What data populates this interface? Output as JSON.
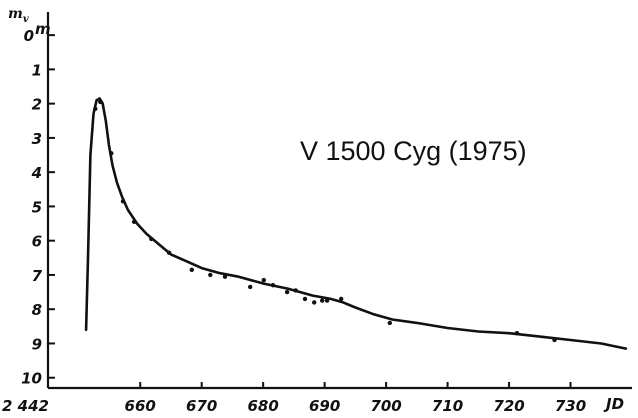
{
  "chart_data": {
    "type": "line",
    "title": "V 1500 Cyg (1975)",
    "ylabel_main": "m",
    "ylabel_sub": "v",
    "xlabel": "JD",
    "x_prefix": "2 442",
    "xlim": [
      645,
      740
    ],
    "ylim": [
      -0.5,
      10.3
    ],
    "y_inverted": true,
    "y_ticks": [
      {
        "value": 0,
        "label": "0"
      },
      {
        "value": 1,
        "label": "1"
      },
      {
        "value": 2,
        "label": "2"
      },
      {
        "value": 3,
        "label": "3"
      },
      {
        "value": 4,
        "label": "4"
      },
      {
        "value": 5,
        "label": "5"
      },
      {
        "value": 6,
        "label": "6"
      },
      {
        "value": 7,
        "label": "7"
      },
      {
        "value": 8,
        "label": "8"
      },
      {
        "value": 9,
        "label": "9"
      },
      {
        "value": 10,
        "label": "10"
      }
    ],
    "y_zero_superscript": "m",
    "x_ticks": [
      {
        "value": 660,
        "label": "660"
      },
      {
        "value": 670,
        "label": "670"
      },
      {
        "value": 680,
        "label": "680"
      },
      {
        "value": 690,
        "label": "690"
      },
      {
        "value": 700,
        "label": "700"
      },
      {
        "value": 710,
        "label": "710"
      },
      {
        "value": 720,
        "label": "720"
      },
      {
        "value": 730,
        "label": "730"
      }
    ],
    "series": [
      {
        "x": [
          651.2,
          651.5,
          651.9,
          652.4,
          652.9,
          653.4,
          653.9,
          654.4,
          654.9,
          655.5,
          656.2,
          657.0,
          658.0,
          659.5,
          661.0,
          663.0,
          665.0,
          667.5,
          670.0,
          673.0,
          676.0,
          680.0,
          684.0,
          688.0,
          691.0,
          693.0,
          695.0,
          698.0,
          701.0,
          705.0,
          710.0,
          715.0,
          720.0,
          725.0,
          730.0,
          735.0,
          739.0
        ],
        "y": [
          8.6,
          6.5,
          3.5,
          2.3,
          1.9,
          1.85,
          2.0,
          2.5,
          3.2,
          3.8,
          4.3,
          4.7,
          5.1,
          5.5,
          5.8,
          6.1,
          6.4,
          6.6,
          6.8,
          6.95,
          7.05,
          7.25,
          7.4,
          7.6,
          7.7,
          7.8,
          7.95,
          8.15,
          8.3,
          8.4,
          8.55,
          8.65,
          8.7,
          8.8,
          8.9,
          9.0,
          9.15
        ]
      }
    ],
    "observations": {
      "x": [
        652.7,
        653.5,
        655.3,
        657.2,
        659.0,
        661.8,
        664.7,
        668.4,
        671.4,
        673.8,
        677.9,
        680.1,
        681.6,
        683.9,
        685.3,
        686.8,
        688.3,
        689.6,
        690.4,
        692.7,
        700.6,
        721.3,
        727.4
      ],
      "y": [
        2.15,
        1.95,
        3.45,
        4.85,
        5.45,
        5.95,
        6.35,
        6.85,
        7.0,
        7.05,
        7.35,
        7.15,
        7.3,
        7.5,
        7.45,
        7.7,
        7.8,
        7.75,
        7.75,
        7.7,
        8.4,
        8.7,
        8.9
      ]
    },
    "grid": false,
    "legend": "none"
  }
}
